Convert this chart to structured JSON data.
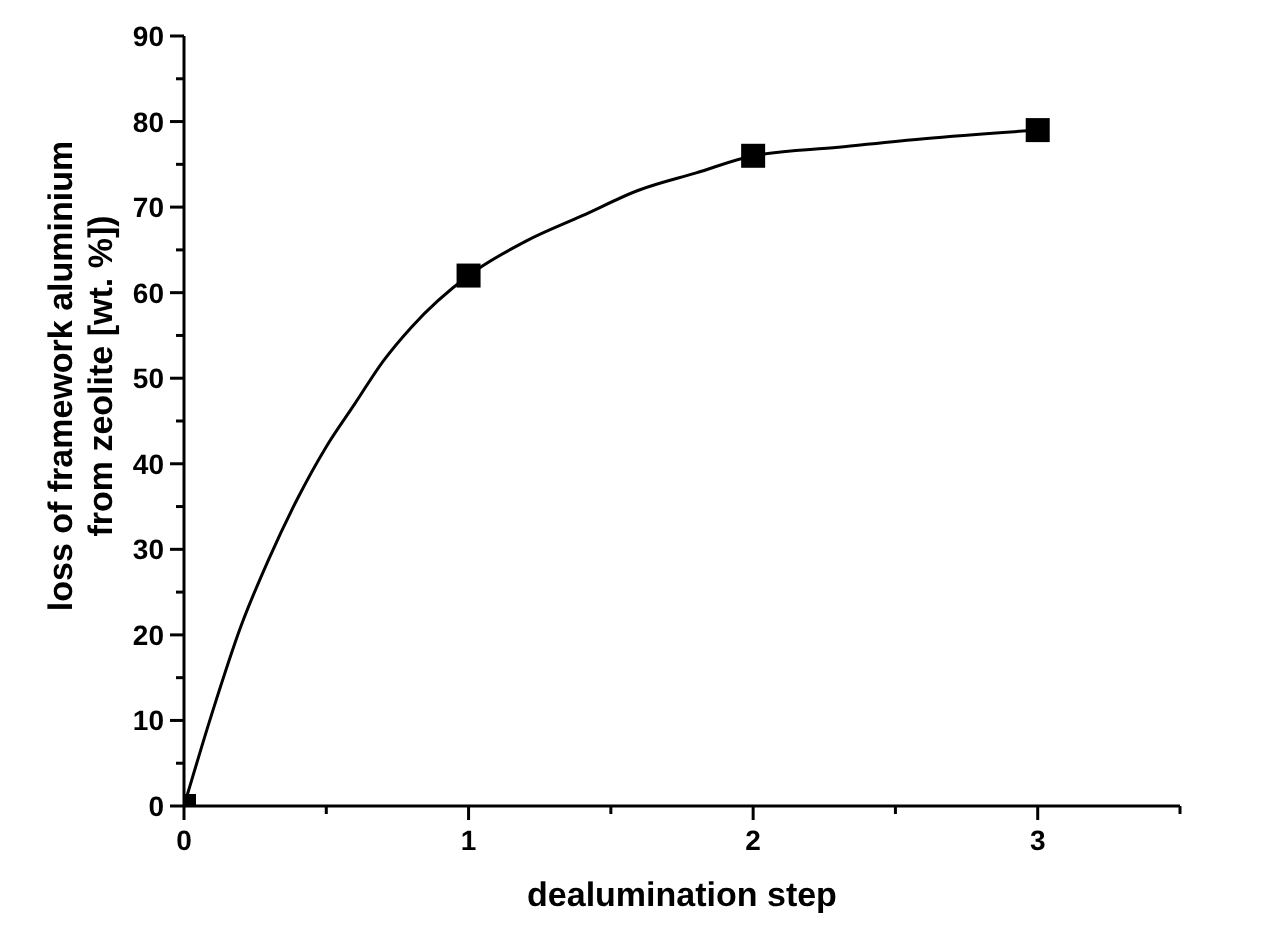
{
  "chart_data": {
    "type": "scatter",
    "xlabel": "dealumination step",
    "ylabel": "loss of framework aluminium\nfrom zeolite [wt. %])",
    "xlim": [
      0,
      3.5
    ],
    "ylim": [
      0,
      90
    ],
    "xticks": [
      0,
      {
        "value": 0.5,
        "label": null
      },
      1,
      {
        "value": 1.5,
        "label": null
      },
      2,
      {
        "value": 2.5,
        "label": null
      },
      3,
      {
        "value": 3.5,
        "label": null
      }
    ],
    "yticks": [
      0,
      {
        "value": 5,
        "label": null
      },
      10,
      {
        "value": 15,
        "label": null
      },
      20,
      {
        "value": 25,
        "label": null
      },
      30,
      {
        "value": 35,
        "label": null
      },
      40,
      {
        "value": 45,
        "label": null
      },
      50,
      {
        "value": 55,
        "label": null
      },
      60,
      {
        "value": 65,
        "label": null
      },
      70,
      {
        "value": 75,
        "label": null
      },
      80,
      {
        "value": 85,
        "label": null
      },
      90
    ],
    "grid": false,
    "legend": false,
    "series": [
      {
        "type": "line",
        "color": "#000000",
        "marker": "none",
        "line_style": "solid",
        "x": [
          0,
          0.1,
          0.2,
          0.3,
          0.4,
          0.5,
          0.6,
          0.7,
          0.8,
          1,
          1.2,
          1.4,
          1.6,
          1.8,
          2,
          2.3,
          2.6,
          3
        ],
        "values": [
          0,
          11,
          21,
          29,
          36,
          42,
          47,
          52,
          56,
          62,
          66,
          69,
          72,
          74,
          76,
          77,
          78,
          79
        ]
      },
      {
        "color": "#000000",
        "marker": "square",
        "x": [
          0,
          1,
          2,
          3
        ],
        "values": [
          0,
          62,
          76,
          79
        ]
      }
    ]
  }
}
